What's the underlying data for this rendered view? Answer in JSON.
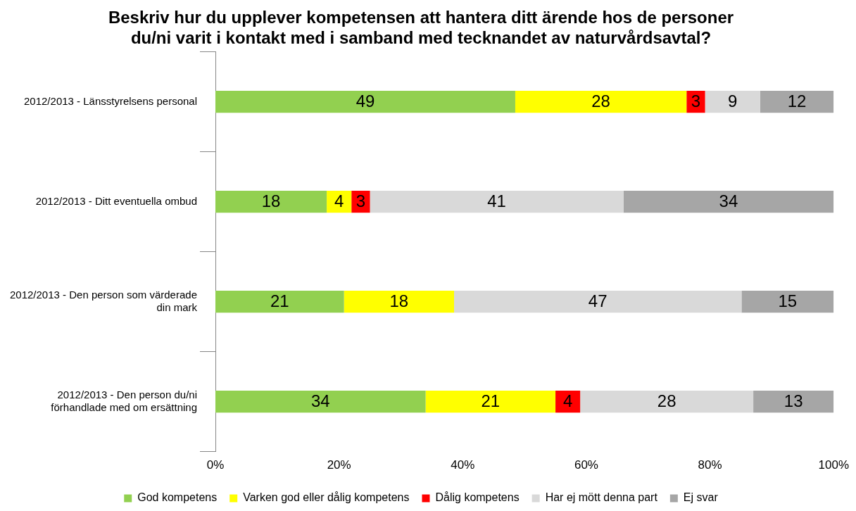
{
  "chart_data": {
    "type": "bar",
    "orientation": "horizontal",
    "stacked": true,
    "title": "Beskriv hur du upplever kompetensen att hantera ditt ärende hos de personer du/ni varit i kontakt med i samband med tecknandet av naturvårdsavtal?",
    "categories": [
      "2012/2013 - Länsstyrelsens personal",
      "2012/2013 - Ditt eventuella ombud",
      "2012/2013 - Den person som värderade din mark",
      "2012/2013 - Den person du/ni förhandlade med om ersättning"
    ],
    "series": [
      {
        "name": "God kompetens",
        "color": "#92d050",
        "values": [
          48.5,
          18,
          20.8,
          34
        ],
        "value_labels": [
          "49",
          "18",
          "21",
          "34"
        ]
      },
      {
        "name": "Varken god eller dålig kompetens",
        "color": "#ffff00",
        "values": [
          27.7,
          4,
          17.8,
          21
        ],
        "value_labels": [
          "28",
          "4",
          "18",
          "21"
        ]
      },
      {
        "name": "Dålig kompetens",
        "color": "#ff0000",
        "values": [
          3.0,
          3,
          null,
          4
        ],
        "value_labels": [
          "3",
          "3",
          null,
          "4"
        ]
      },
      {
        "name": "Har ej mött denna part",
        "color": "#d9d9d9",
        "values": [
          8.9,
          41,
          46.5,
          28
        ],
        "value_labels": [
          "9",
          "41",
          "47",
          "28"
        ]
      },
      {
        "name": "Ej svar",
        "color": "#a6a6a6",
        "values": [
          11.9,
          34,
          14.9,
          13
        ],
        "value_labels": [
          "12",
          "34",
          "15",
          "13"
        ]
      }
    ],
    "xlim": [
      0,
      100
    ],
    "xticks": [
      {
        "value": 0,
        "label": "0%"
      },
      {
        "value": 20,
        "label": "20%"
      },
      {
        "value": 40,
        "label": "40%"
      },
      {
        "value": 60,
        "label": "60%"
      },
      {
        "value": 80,
        "label": "80%"
      },
      {
        "value": 100,
        "label": "100%"
      }
    ],
    "grid": false,
    "legend": "bottom"
  }
}
